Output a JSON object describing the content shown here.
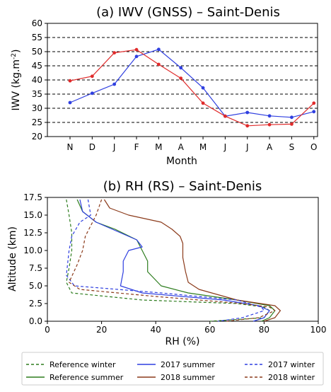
{
  "chart_data": [
    {
      "type": "line",
      "title": "(a) IWV (GNSS) – Saint-Denis",
      "xlabel": "Month",
      "ylabel": "IWV (kg.m",
      "ylabel_sup": "-2",
      "ylabel_tail": ")",
      "categories": [
        "N",
        "D",
        "J",
        "F",
        "M",
        "A",
        "M",
        "J",
        "J",
        "A",
        "S",
        "O"
      ],
      "ylim": [
        20,
        60
      ],
      "yticks": [
        20,
        25,
        30,
        35,
        40,
        45,
        50,
        55,
        60
      ],
      "grid": "horizontal dashed",
      "series": [
        {
          "name": "2017",
          "color": "#2f3fe0",
          "values": [
            32.0,
            35.3,
            38.5,
            48.3,
            50.8,
            44.3,
            37.2,
            27.2,
            28.5,
            27.3,
            26.8,
            28.8
          ]
        },
        {
          "name": "2018",
          "color": "#e02b2b",
          "values": [
            39.7,
            41.3,
            49.6,
            50.7,
            45.5,
            40.6,
            31.8,
            27.2,
            23.8,
            24.2,
            24.4,
            31.8
          ]
        }
      ]
    },
    {
      "type": "line",
      "title": "(b) RH (RS) – Saint-Denis",
      "xlabel": "RH (%)",
      "ylabel": "Altitude (km)",
      "xlim": [
        0,
        100
      ],
      "ylim": [
        0,
        17.5
      ],
      "xticks": [
        0,
        20,
        40,
        60,
        80,
        100
      ],
      "yticks": [
        0.0,
        2.5,
        5.0,
        7.5,
        10.0,
        12.5,
        15.0,
        17.5
      ],
      "ytick_labels": [
        "0.0",
        "2.5",
        "5.0",
        "7.5",
        "10.0",
        "12.5",
        "15.0",
        "17.5"
      ],
      "legend": "bottom",
      "series": [
        {
          "name": "Reference winter",
          "color": "#2e7d1f",
          "style": "dashed",
          "x": [
            7,
            8,
            9,
            9,
            8,
            7,
            9,
            35,
            70,
            80,
            82,
            80,
            60
          ],
          "y": [
            17.2,
            15.0,
            12.5,
            10.0,
            7.5,
            5.5,
            4.0,
            3.0,
            2.5,
            2.0,
            1.5,
            0.5,
            0.0
          ]
        },
        {
          "name": "Reference summer",
          "color": "#2e7d1f",
          "style": "solid",
          "x": [
            11,
            13,
            18,
            25,
            33,
            35,
            37,
            37,
            42,
            52,
            70,
            82,
            84,
            82,
            79
          ],
          "y": [
            17.2,
            15.5,
            14.0,
            13.0,
            11.5,
            10.0,
            8.5,
            7.0,
            5.0,
            4.0,
            3.0,
            2.2,
            1.5,
            0.5,
            0.0
          ]
        },
        {
          "name": "2017 summer",
          "color": "#2f3fe0",
          "style": "solid",
          "x": [
            12,
            13,
            18,
            24,
            33,
            35,
            30,
            28,
            28,
            27,
            35,
            65,
            78,
            82,
            80,
            76
          ],
          "y": [
            17.2,
            15.5,
            14.0,
            13.0,
            11.5,
            10.5,
            10.0,
            8.5,
            7.0,
            5.0,
            4.0,
            3.0,
            2.2,
            1.5,
            0.5,
            0.0
          ]
        },
        {
          "name": "2018 summer",
          "color": "#8b3a1a",
          "style": "solid",
          "x": [
            21,
            23,
            30,
            42,
            46,
            49,
            50,
            50,
            51,
            52,
            56,
            70,
            84,
            86,
            84,
            80
          ],
          "y": [
            17.2,
            16.0,
            15.0,
            14.0,
            13.0,
            12.0,
            11.0,
            9.0,
            7.0,
            5.5,
            4.5,
            3.0,
            2.2,
            1.5,
            0.5,
            0.0
          ]
        },
        {
          "name": "2017 winter",
          "color": "#2f3fe0",
          "style": "dashed",
          "x": [
            15,
            16,
            12,
            9,
            8,
            7,
            10,
            42,
            70,
            79,
            80,
            72,
            63
          ],
          "y": [
            17.2,
            15.0,
            14.0,
            12.0,
            10.0,
            6.5,
            5.0,
            4.0,
            3.0,
            2.0,
            1.5,
            0.5,
            0.0
          ]
        },
        {
          "name": "2018 winter",
          "color": "#8b3a1a",
          "style": "dashed",
          "x": [
            20,
            18,
            16,
            14,
            13,
            11,
            8,
            12,
            40,
            72,
            82,
            84,
            78,
            66
          ],
          "y": [
            17.2,
            15.0,
            13.5,
            12.0,
            10.0,
            8.0,
            5.5,
            4.5,
            3.5,
            2.5,
            2.0,
            1.5,
            0.5,
            0.0
          ]
        }
      ]
    }
  ]
}
